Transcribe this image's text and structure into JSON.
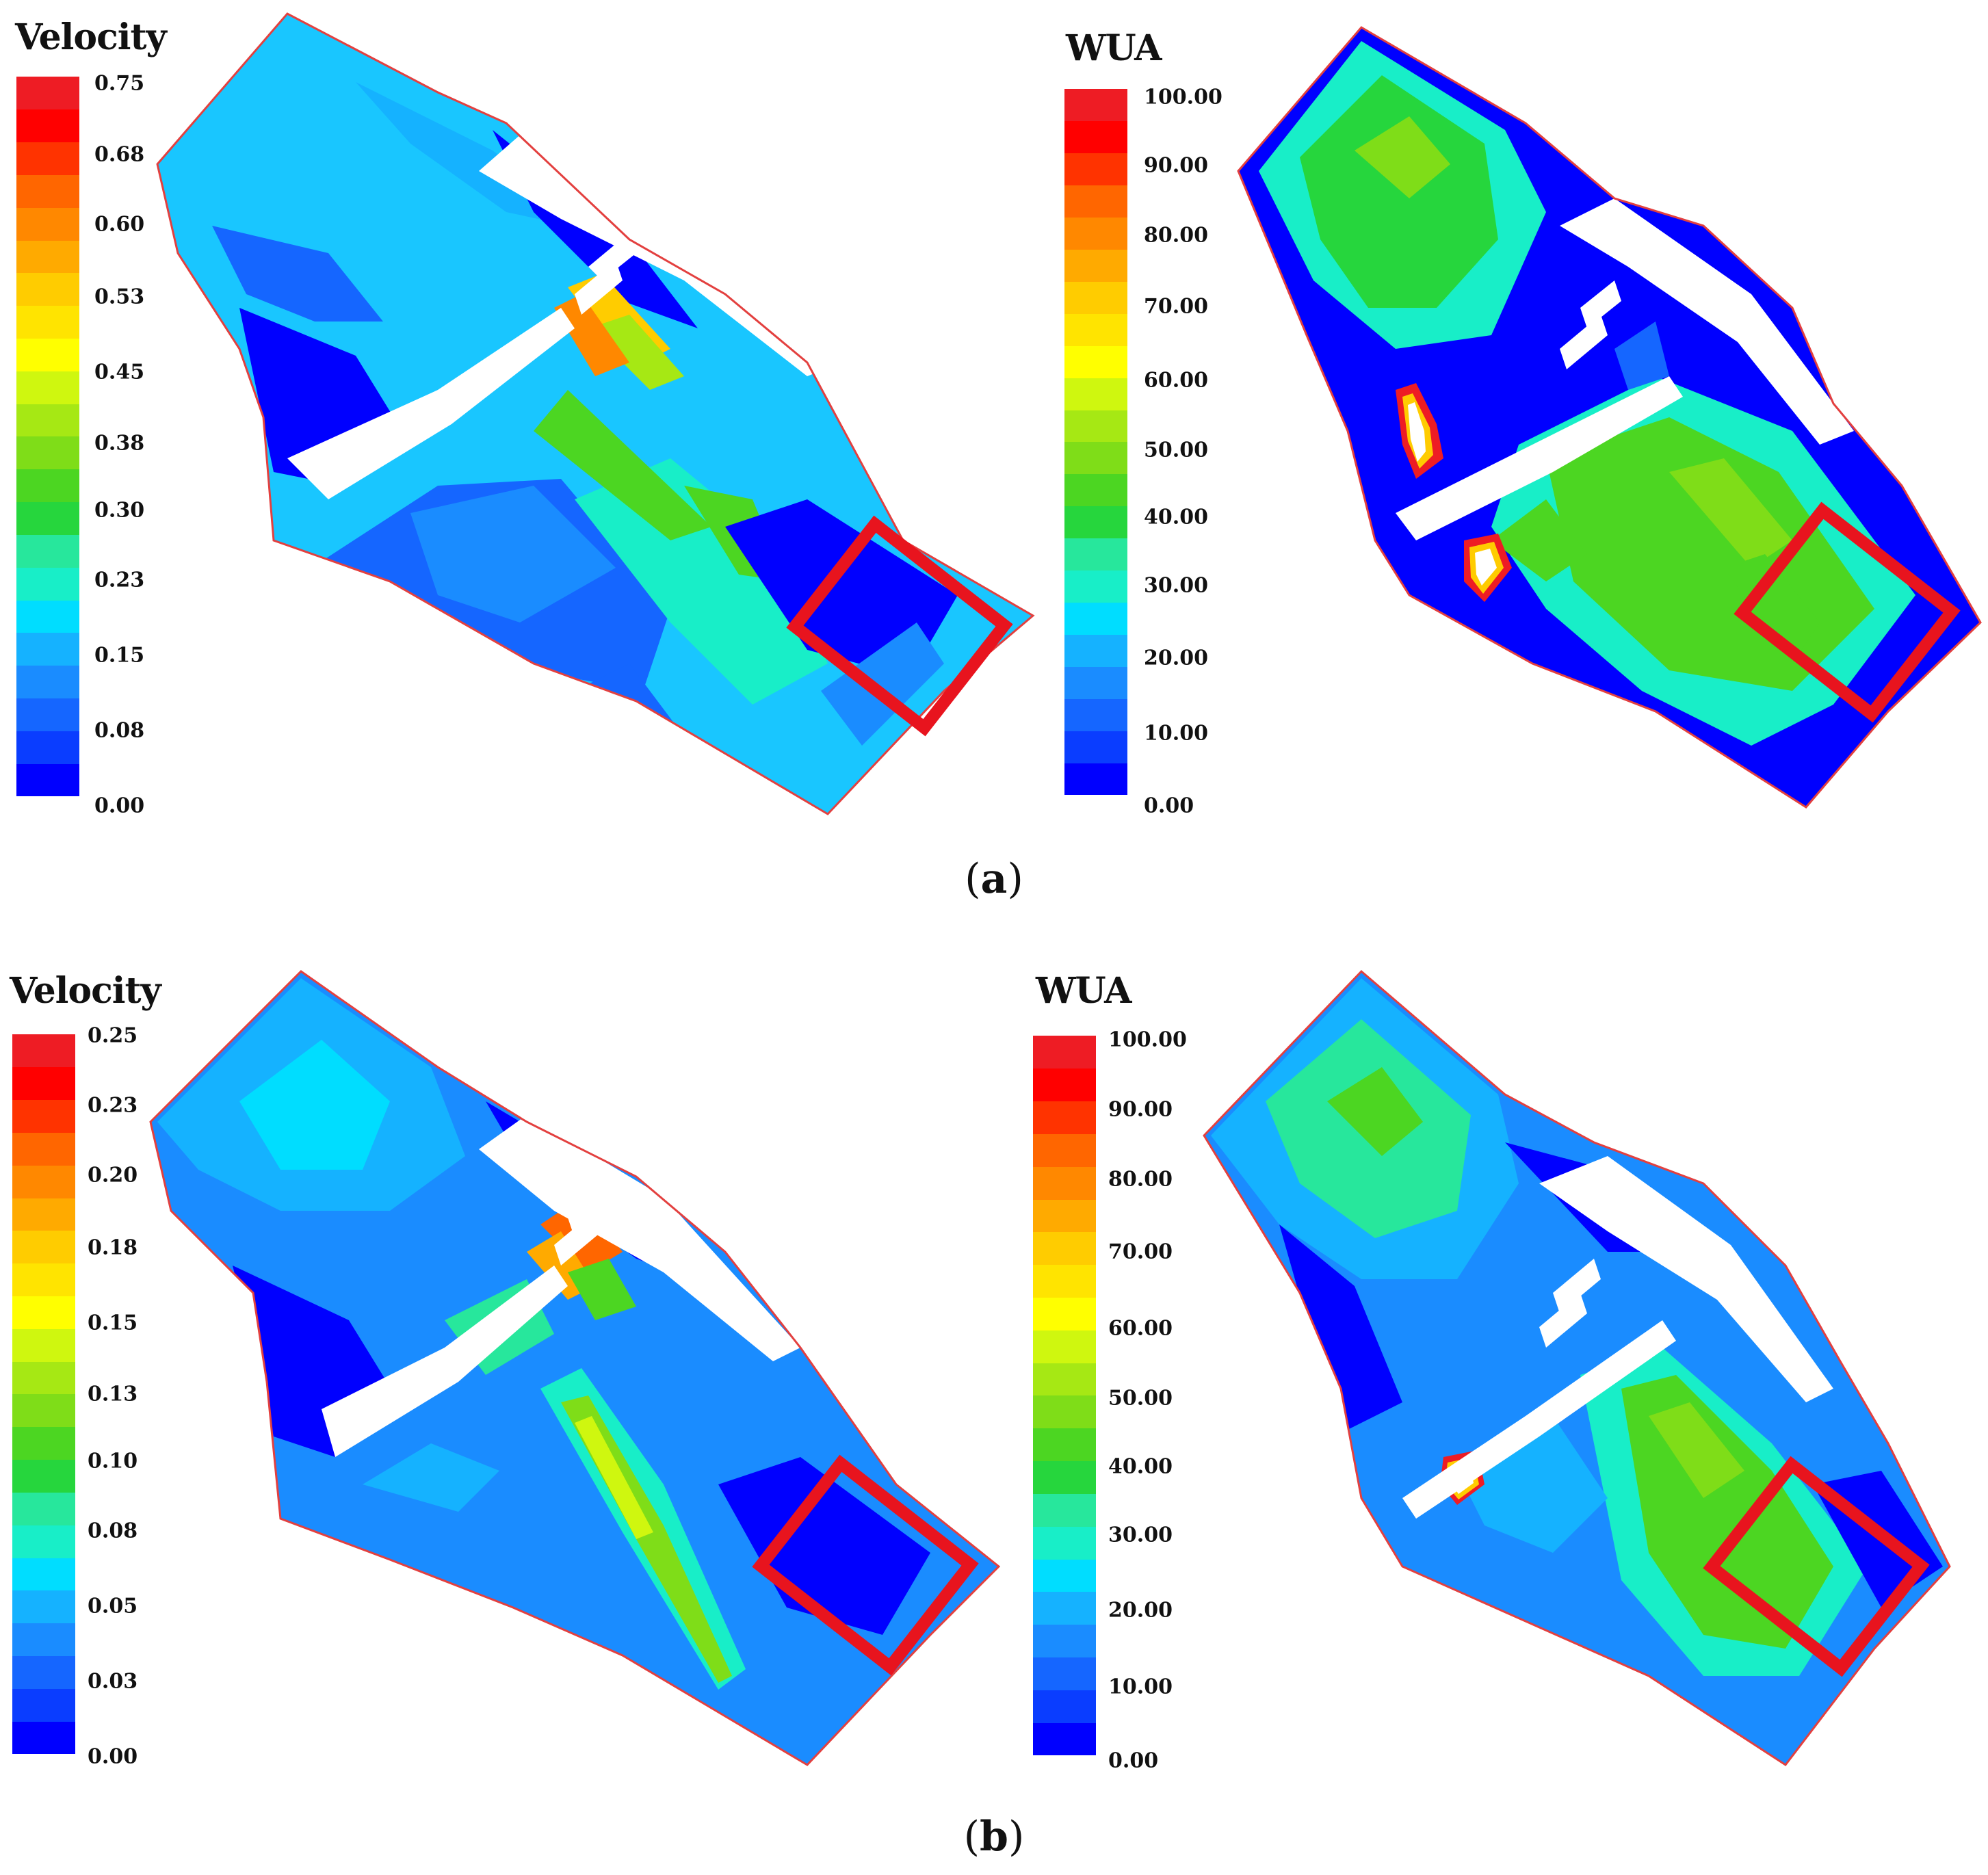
{
  "colors": {
    "scale": [
      "#0000ff",
      "#0a3dff",
      "#1566ff",
      "#1a8cff",
      "#15b2ff",
      "#00ddff",
      "#18eec8",
      "#27e79c",
      "#26d63d",
      "#4cd622",
      "#7fdd18",
      "#a6e814",
      "#cff70f",
      "#ffff00",
      "#ffe400",
      "#ffcc00",
      "#ffaa00",
      "#ff8800",
      "#ff6600",
      "#ff3300",
      "#ff0000",
      "#ee1c24"
    ],
    "highlight_box": "#e8141e",
    "outline": "#e3403f"
  },
  "panels": [
    {
      "label": "a",
      "velocity": {
        "title": "Velocity",
        "ticks": [
          "0.75",
          "0.68",
          "0.60",
          "0.53",
          "0.45",
          "0.38",
          "0.30",
          "0.23",
          "0.15",
          "0.08",
          "0.00"
        ]
      },
      "wua": {
        "title": "WUA",
        "ticks": [
          "100.00",
          "90.00",
          "80.00",
          "70.00",
          "60.00",
          "50.00",
          "40.00",
          "30.00",
          "20.00",
          "10.00",
          "0.00"
        ]
      }
    },
    {
      "label": "b",
      "velocity": {
        "title": "Velocity",
        "ticks": [
          "0.25",
          "0.23",
          "0.20",
          "0.18",
          "0.15",
          "0.13",
          "0.10",
          "0.08",
          "0.05",
          "0.03",
          "0.00"
        ]
      },
      "wua": {
        "title": "WUA",
        "ticks": [
          "100.00",
          "90.00",
          "80.00",
          "70.00",
          "60.00",
          "50.00",
          "40.00",
          "30.00",
          "20.00",
          "10.00",
          "0.00"
        ]
      }
    }
  ]
}
